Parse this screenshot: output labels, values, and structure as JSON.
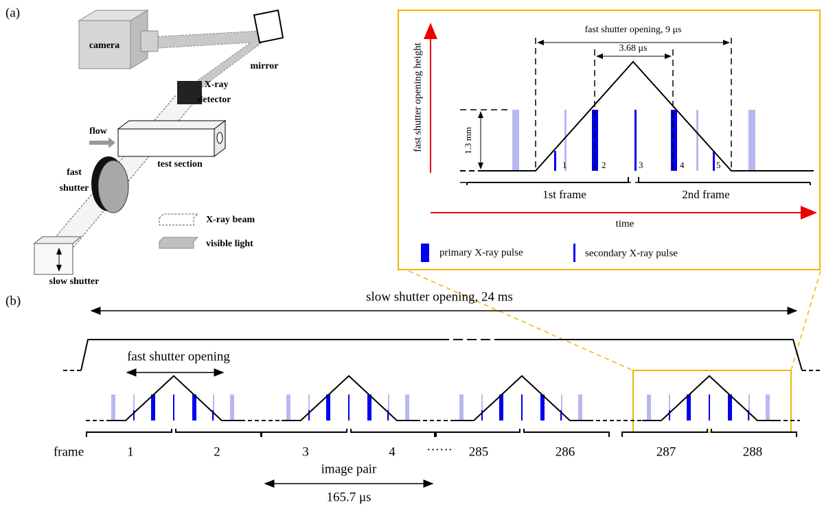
{
  "panel_a": {
    "label": "(a)",
    "setup": {
      "camera": "camera",
      "mirror": "mirror",
      "detector": [
        "X-ray",
        "detector"
      ],
      "flow": "flow",
      "test_section": "test section",
      "fast_shutter": [
        "fast",
        "shutter"
      ],
      "slow_shutter": "slow shutter",
      "legend": [
        "X-ray beam",
        "visible light"
      ]
    },
    "inset": {
      "y_axis": "fast shutter opening height",
      "x_axis": "time",
      "opening": "fast shutter opening, 9 μs",
      "gap": "3.68 μs",
      "height": "1.3 mm",
      "pulse_numbers": [
        "1",
        "2",
        "3",
        "4",
        "5"
      ],
      "frames": [
        "1st frame",
        "2nd frame"
      ],
      "legend": [
        "primary X-ray pulse",
        "secondary X-ray pulse"
      ]
    }
  },
  "panel_b": {
    "label": "(b)",
    "slow": "slow shutter opening, 24 ms",
    "fast": "fast shutter opening",
    "frame_label": "frame",
    "frames": [
      "1",
      "2",
      "3",
      "4",
      "285",
      "286",
      "287",
      "288"
    ],
    "ellipsis": "······",
    "pair": "image pair",
    "pair_time": "165.7 μs"
  }
}
